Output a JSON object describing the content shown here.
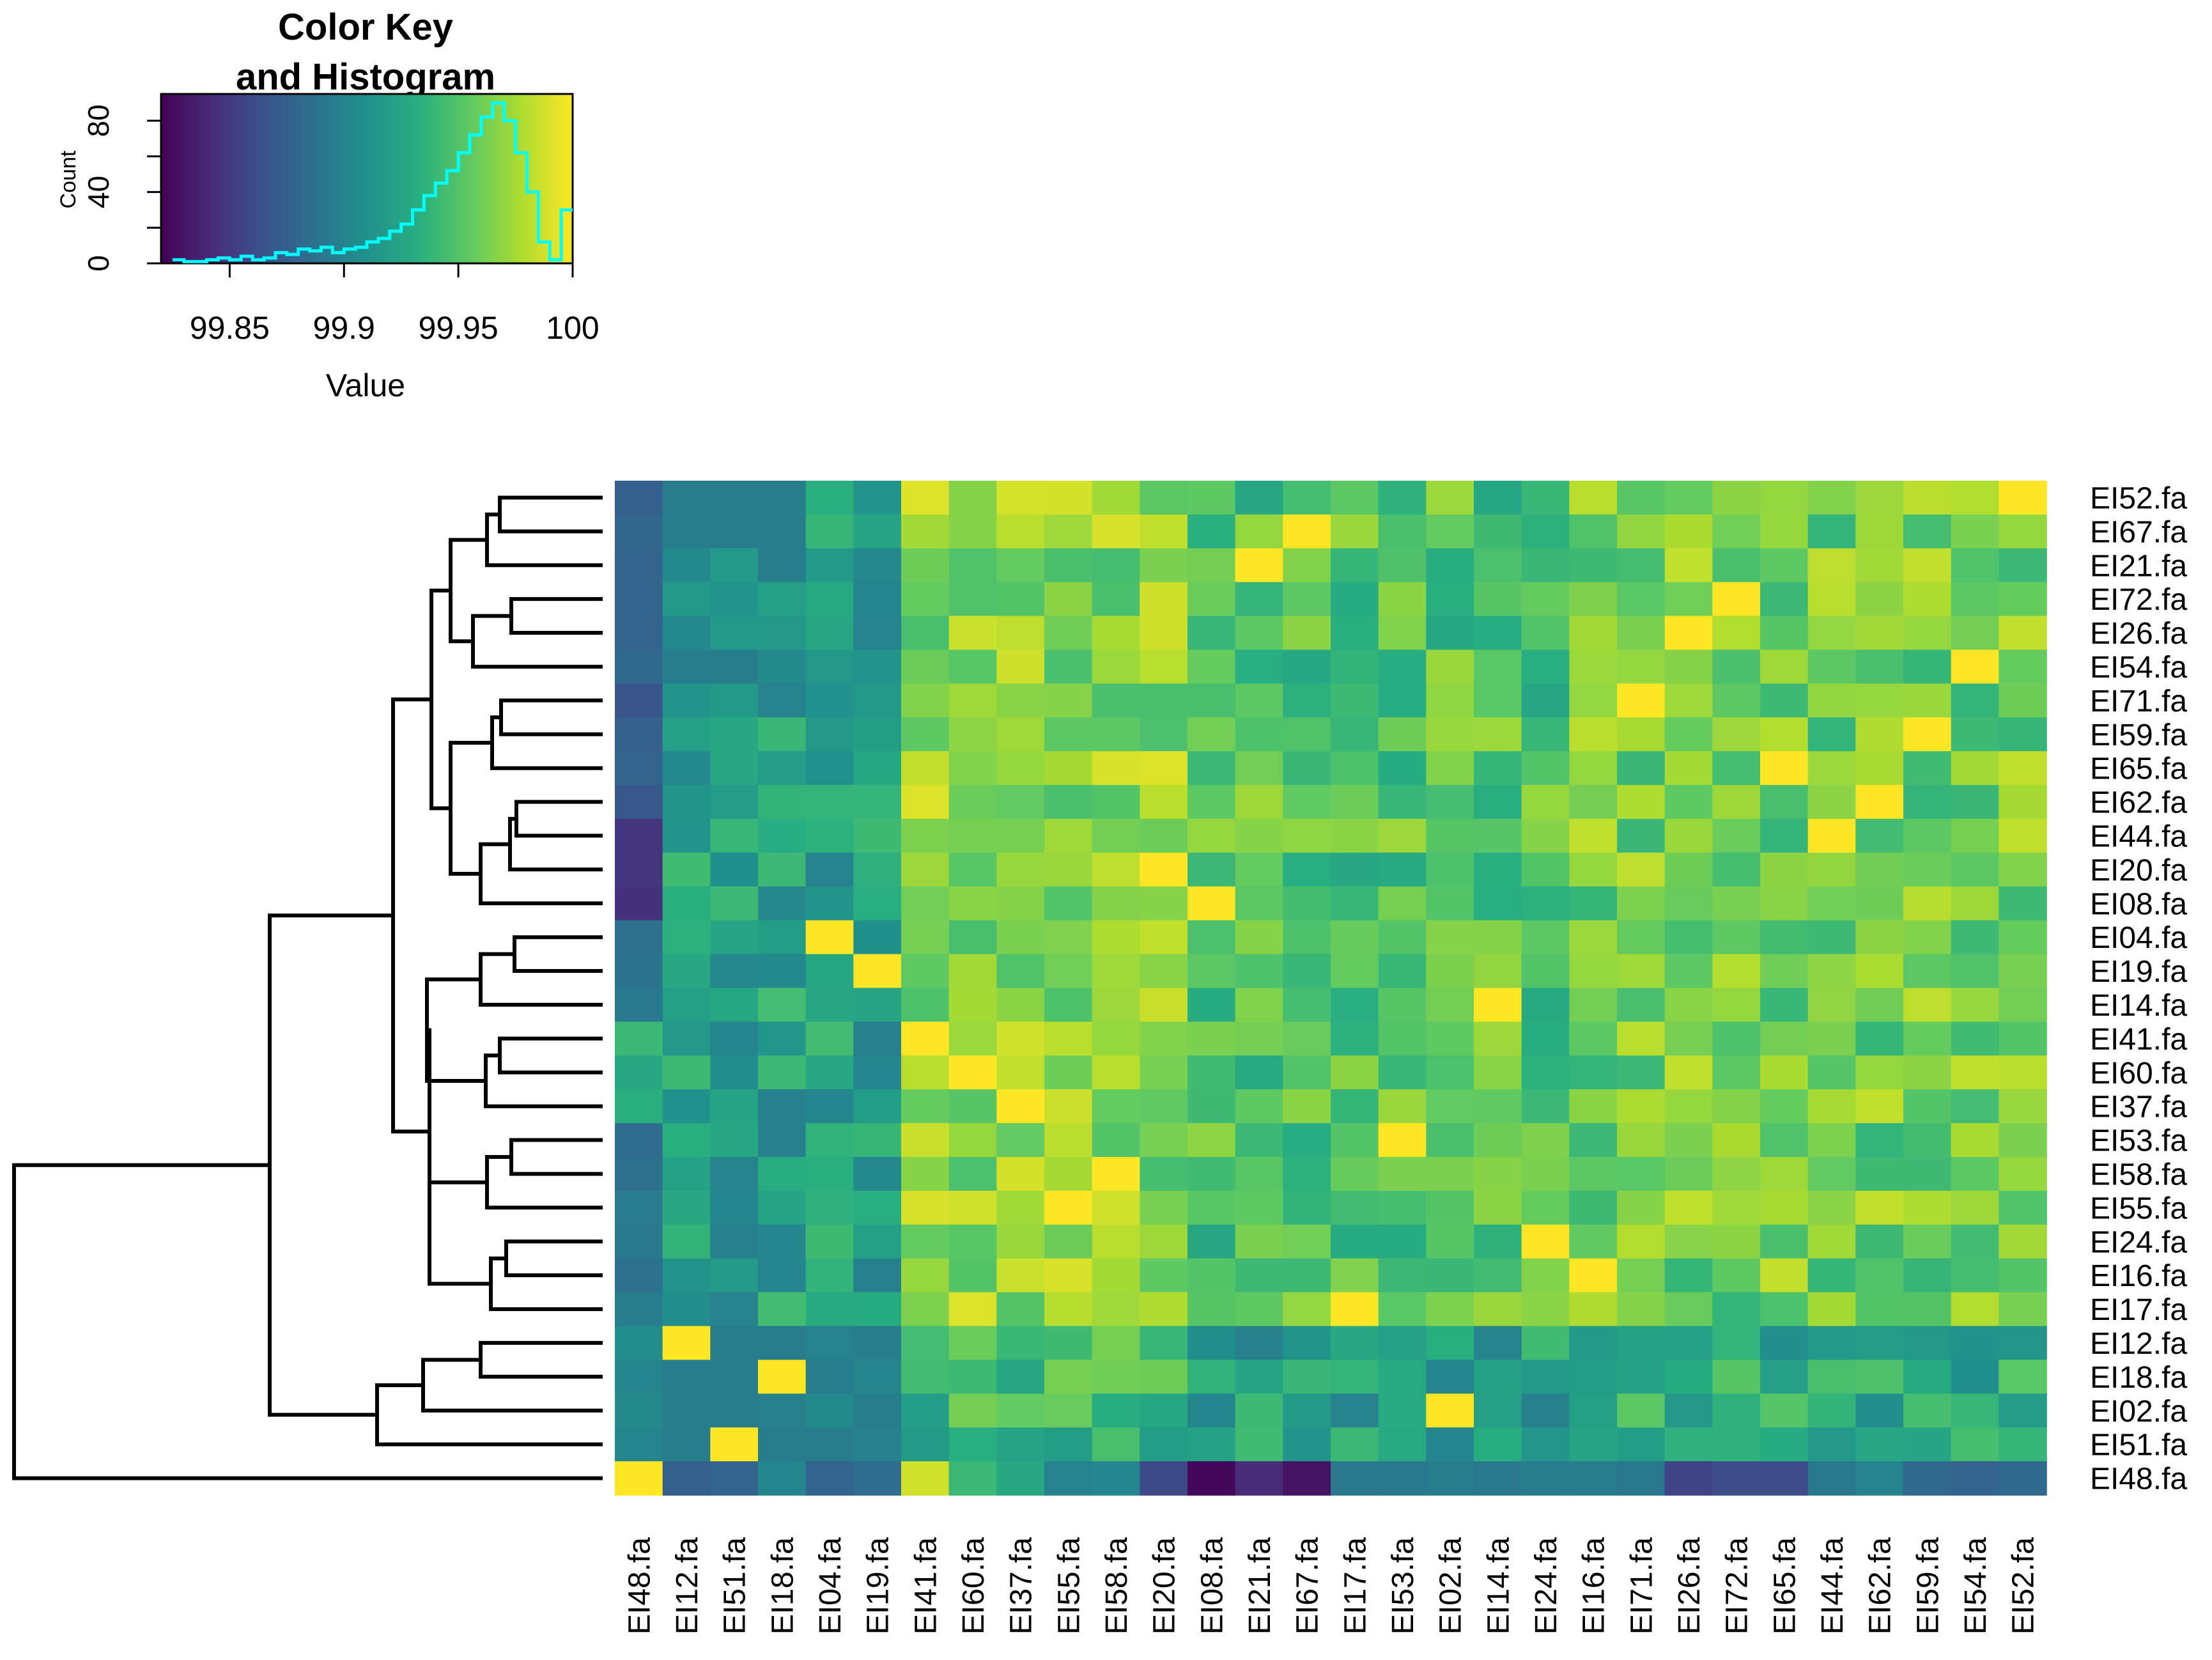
{
  "chart_data": {
    "type": "heatmap",
    "row_labels": [
      "EI52.fa",
      "EI67.fa",
      "EI21.fa",
      "EI72.fa",
      "EI26.fa",
      "EI54.fa",
      "EI71.fa",
      "EI59.fa",
      "EI65.fa",
      "EI62.fa",
      "EI44.fa",
      "EI20.fa",
      "EI08.fa",
      "EI04.fa",
      "EI19.fa",
      "EI14.fa",
      "EI41.fa",
      "EI60.fa",
      "EI37.fa",
      "EI53.fa",
      "EI58.fa",
      "EI55.fa",
      "EI24.fa",
      "EI16.fa",
      "EI17.fa",
      "EI12.fa",
      "EI18.fa",
      "EI02.fa",
      "EI51.fa",
      "EI48.fa"
    ],
    "col_labels": [
      "EI48.fa",
      "EI12.fa",
      "EI51.fa",
      "EI18.fa",
      "EI04.fa",
      "EI19.fa",
      "EI41.fa",
      "EI60.fa",
      "EI37.fa",
      "EI55.fa",
      "EI58.fa",
      "EI20.fa",
      "EI08.fa",
      "EI21.fa",
      "EI67.fa",
      "EI17.fa",
      "EI53.fa",
      "EI02.fa",
      "EI14.fa",
      "EI24.fa",
      "EI16.fa",
      "EI71.fa",
      "EI26.fa",
      "EI72.fa",
      "EI65.fa",
      "EI44.fa",
      "EI62.fa",
      "EI59.fa",
      "EI54.fa",
      "EI52.fa"
    ],
    "value_range": [
      99.82,
      100
    ],
    "colormap": [
      "#440154",
      "#472d7b",
      "#3b528b",
      "#2c728e",
      "#21918c",
      "#28ae80",
      "#5ec962",
      "#addc30",
      "#fde725"
    ],
    "color_key": {
      "title_line1": "Color Key",
      "title_line2": "and Histogram",
      "xlabel": "Value",
      "ylabel": "Count",
      "x_ticks": [
        "99.85",
        "99.9",
        "99.95",
        "100"
      ],
      "x_tick_values": [
        99.85,
        99.9,
        99.95,
        100
      ],
      "y_ticks": [
        "0",
        "40",
        "80"
      ],
      "y_tick_values": [
        0,
        40,
        80
      ],
      "ylim": [
        0,
        95
      ],
      "histogram_color": "#00ffff",
      "histogram_bins": [
        99.825,
        99.83,
        99.835,
        99.84,
        99.845,
        99.85,
        99.855,
        99.86,
        99.865,
        99.87,
        99.875,
        99.88,
        99.885,
        99.89,
        99.895,
        99.9,
        99.905,
        99.91,
        99.915,
        99.92,
        99.925,
        99.93,
        99.935,
        99.94,
        99.945,
        99.95,
        99.955,
        99.96,
        99.965,
        99.97,
        99.975,
        99.98,
        99.985,
        99.99,
        99.995,
        100
      ],
      "histogram_counts": [
        2,
        1,
        1,
        2,
        3,
        2,
        4,
        2,
        3,
        6,
        5,
        8,
        7,
        9,
        6,
        8,
        9,
        12,
        14,
        18,
        22,
        30,
        38,
        45,
        52,
        62,
        72,
        82,
        90,
        80,
        62,
        40,
        12,
        2,
        30
      ]
    }
  }
}
